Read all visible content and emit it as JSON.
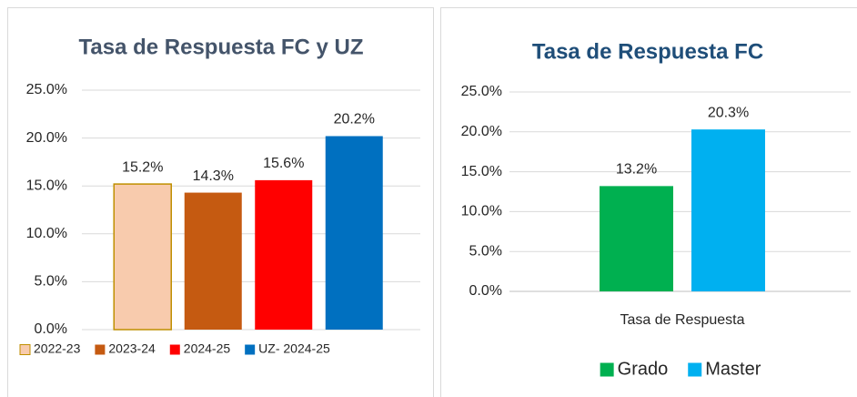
{
  "chart_data": [
    {
      "type": "bar",
      "title": "Tasa de Respuesta FC y UZ",
      "categories": [
        null
      ],
      "series": [
        {
          "name": "2022-23",
          "color": "#F8CBAD",
          "stroke": "#BF8F00",
          "values": [
            15.2
          ],
          "value_labels": [
            "15.2%"
          ]
        },
        {
          "name": "2023-24",
          "color": "#C55A11",
          "values": [
            14.3
          ],
          "value_labels": [
            "14.3%"
          ]
        },
        {
          "name": "2024-25",
          "color": "#FF0000",
          "values": [
            15.6
          ],
          "value_labels": [
            "15.6%"
          ]
        },
        {
          "name": "UZ- 2024-25",
          "color": "#0070C0",
          "values": [
            20.2
          ],
          "value_labels": [
            "20.2%"
          ]
        }
      ],
      "ylim": [
        0,
        25
      ],
      "yticks": [
        {
          "value": 0,
          "label": "0.0%"
        },
        {
          "value": 5,
          "label": "5.0%"
        },
        {
          "value": 10,
          "label": "10.0%"
        },
        {
          "value": 15,
          "label": "15.0%"
        },
        {
          "value": 20,
          "label": "20.0%"
        },
        {
          "value": 25,
          "label": "25.0%"
        }
      ],
      "grid": true,
      "legend": "bottom"
    },
    {
      "type": "bar",
      "title": "Tasa de Respuesta FC",
      "categories": [
        "Tasa de Respuesta"
      ],
      "series": [
        {
          "name": "Grado",
          "color": "#00B050",
          "values": [
            13.2
          ],
          "value_labels": [
            "13.2%"
          ]
        },
        {
          "name": "Master",
          "color": "#00B0F0",
          "values": [
            20.3
          ],
          "value_labels": [
            "20.3%"
          ]
        }
      ],
      "ylim": [
        0,
        25
      ],
      "yticks": [
        {
          "value": 0,
          "label": "0.0%"
        },
        {
          "value": 5,
          "label": "5.0%"
        },
        {
          "value": 10,
          "label": "10.0%"
        },
        {
          "value": 15,
          "label": "15.0%"
        },
        {
          "value": 20,
          "label": "20.0%"
        },
        {
          "value": 25,
          "label": "25.0%"
        }
      ],
      "grid": true,
      "legend": "bottom"
    }
  ]
}
